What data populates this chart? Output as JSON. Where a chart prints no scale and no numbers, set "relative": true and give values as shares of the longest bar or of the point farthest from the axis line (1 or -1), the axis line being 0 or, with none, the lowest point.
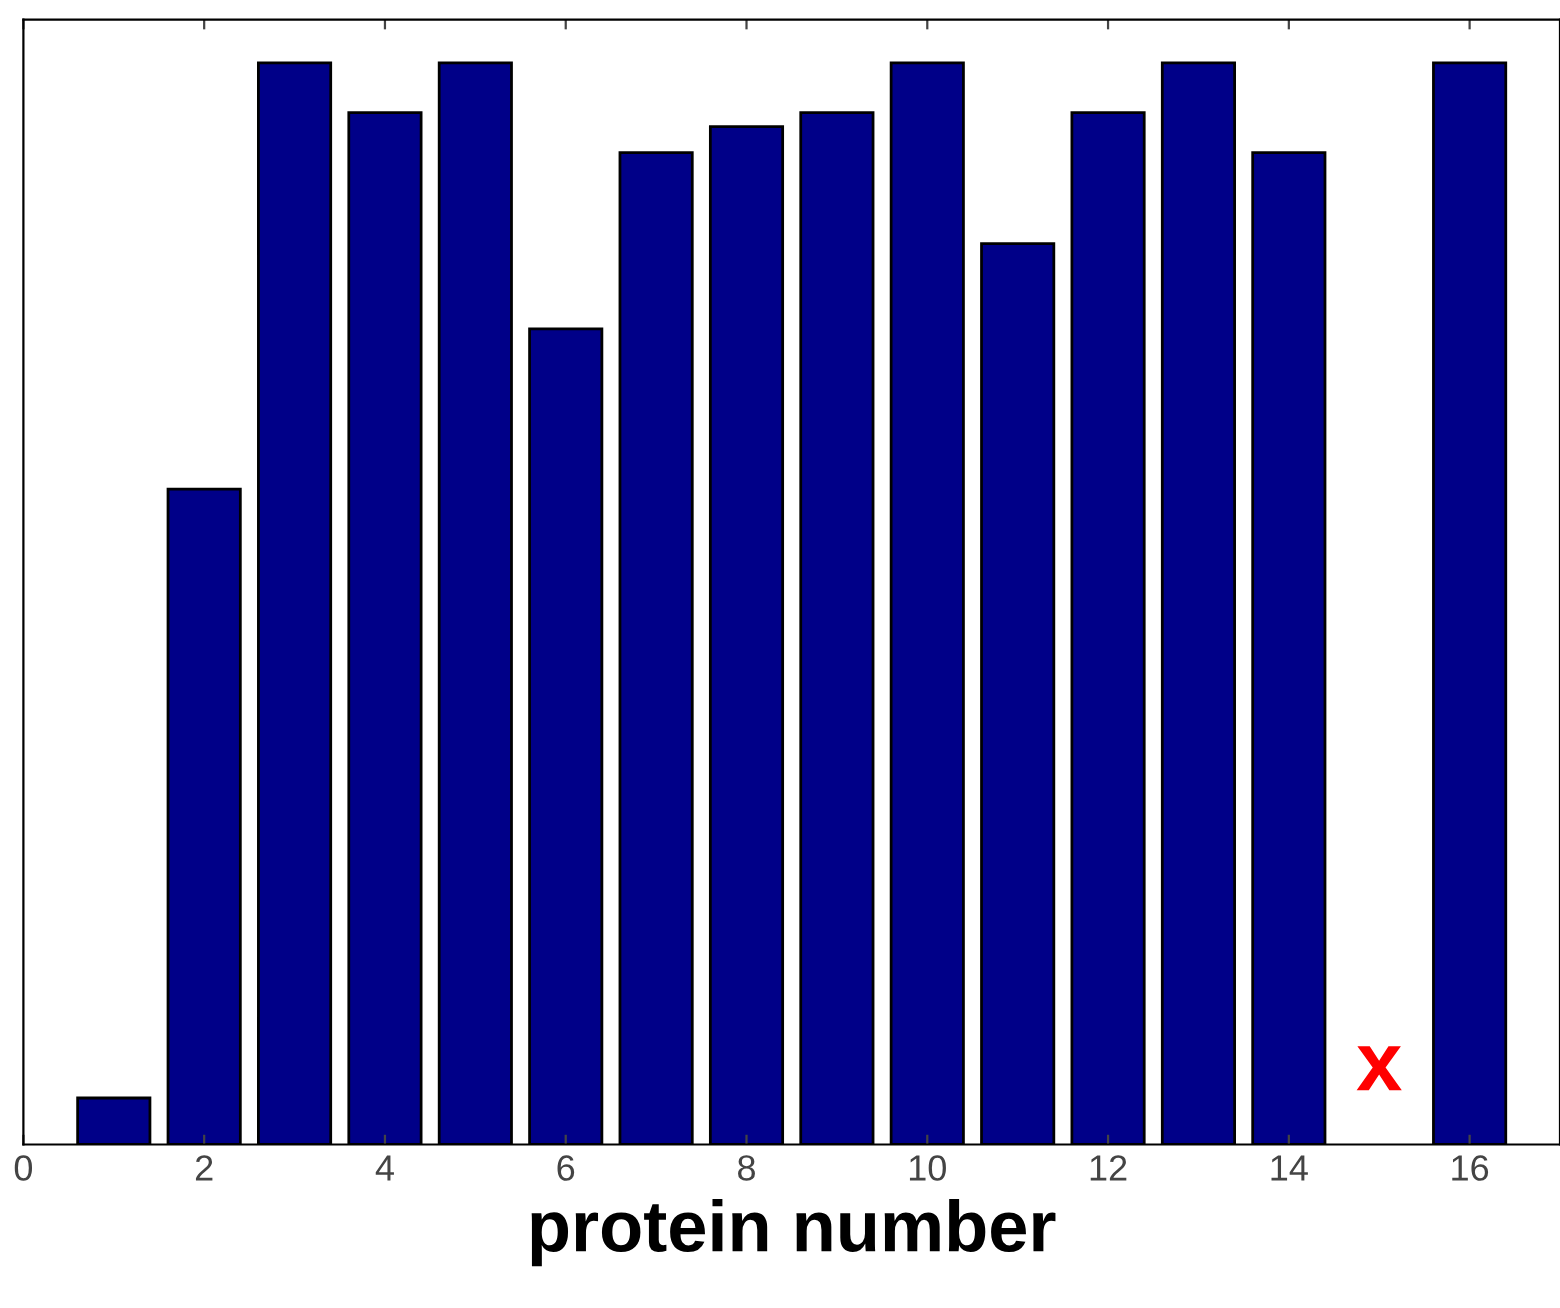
{
  "chart_data": {
    "type": "bar",
    "relative": true,
    "xlabel": "protein number",
    "x": [
      1,
      2,
      3,
      4,
      5,
      6,
      7,
      8,
      9,
      10,
      11,
      12,
      13,
      14,
      15,
      16
    ],
    "values": [
      0.043,
      0.606,
      1,
      0.954,
      1,
      0.754,
      0.917,
      0.941,
      0.954,
      1,
      0.833,
      0.954,
      1,
      0.917,
      null,
      1
    ],
    "color": "#000088",
    "xlim": [
      0,
      17
    ],
    "xticks": [
      0,
      2,
      4,
      6,
      8,
      10,
      12,
      14,
      16
    ],
    "annotations": [
      "x"
    ],
    "grid": false,
    "legend": false
  }
}
